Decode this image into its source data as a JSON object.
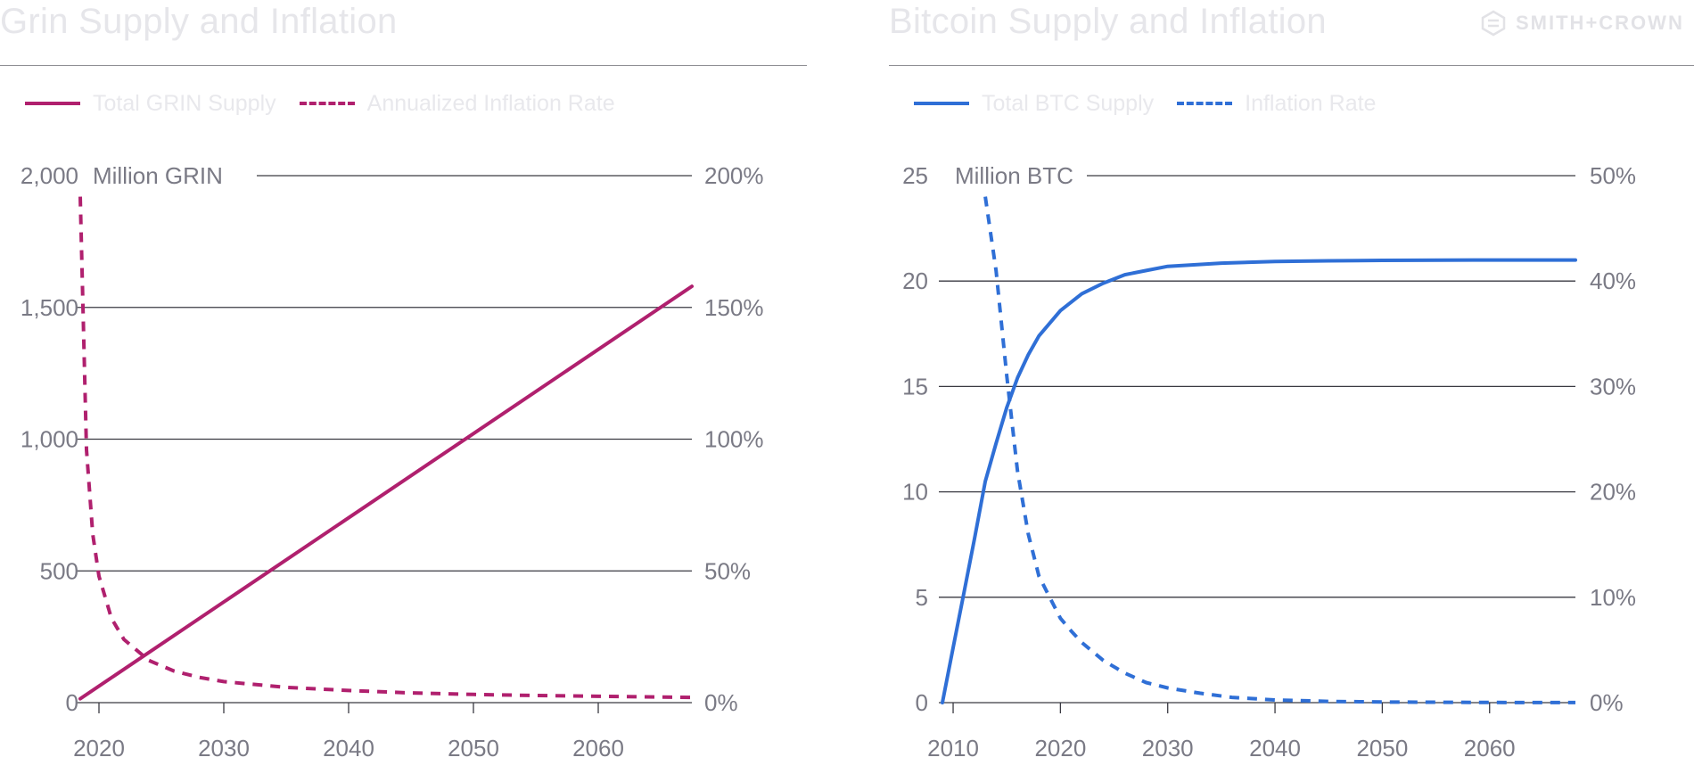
{
  "colors": {
    "grin": "#b0206e",
    "btc": "#2f6fd6",
    "grid": "#3a3a42",
    "text": "#7a7a85",
    "faint": "#e6e6ea"
  },
  "logo": {
    "text": "SMITH+CROWN",
    "icon": "sc-logo-icon"
  },
  "chart_data": [
    {
      "type": "line",
      "title": "Grin Supply and Inflation",
      "legend": [
        "Total GRIN Supply",
        "Annualized Inflation Rate"
      ],
      "left_axis_unit": "Million GRIN",
      "yticks_left": [
        "0",
        "500",
        "1,000",
        "1,500",
        "2,000"
      ],
      "ylim_left": [
        0,
        2000
      ],
      "yticks_right": [
        "0%",
        "50%",
        "100%",
        "150%",
        "200%"
      ],
      "ylim_right": [
        0,
        200
      ],
      "xticks": [
        "2020",
        "2030",
        "2040",
        "2050",
        "2060"
      ],
      "xlim": [
        2018.5,
        2067.5
      ],
      "grid": true,
      "series": [
        {
          "name": "Total GRIN Supply",
          "axis": "left",
          "style": "solid",
          "x": [
            2018.5,
            2067.5
          ],
          "y": [
            15,
            1580
          ]
        },
        {
          "name": "Annualized Inflation Rate",
          "axis": "right",
          "style": "dashed",
          "x": [
            2018.5,
            2019,
            2019.5,
            2020,
            2021,
            2022,
            2024,
            2026,
            2028,
            2030,
            2035,
            2040,
            2045,
            2050,
            2055,
            2060,
            2067.5
          ],
          "y": [
            192,
            96,
            64,
            48,
            32,
            24,
            16,
            12,
            9.6,
            8,
            5.8,
            4.6,
            3.7,
            3.1,
            2.7,
            2.4,
            2.0
          ]
        }
      ]
    },
    {
      "type": "line",
      "title": "Bitcoin Supply and Inflation",
      "legend": [
        "Total BTC Supply",
        "Inflation Rate"
      ],
      "left_axis_unit": "Million BTC",
      "yticks_left": [
        "0",
        "5",
        "10",
        "15",
        "20",
        "25"
      ],
      "ylim_left": [
        0,
        25
      ],
      "yticks_right": [
        "0%",
        "10%",
        "20%",
        "30%",
        "40%",
        "50%"
      ],
      "ylim_right": [
        0,
        50
      ],
      "xticks": [
        "2010",
        "2020",
        "2030",
        "2040",
        "2050",
        "2060"
      ],
      "xlim": [
        2009,
        2068
      ],
      "grid": true,
      "series": [
        {
          "name": "Total BTC Supply",
          "axis": "left",
          "style": "solid",
          "x": [
            2009,
            2010,
            2011,
            2012,
            2013,
            2014,
            2015,
            2016,
            2017,
            2018,
            2020,
            2022,
            2024,
            2026,
            2028,
            2030,
            2035,
            2040,
            2045,
            2050,
            2060,
            2068
          ],
          "y": [
            0,
            2.6,
            5.2,
            7.8,
            10.5,
            12.3,
            14.0,
            15.4,
            16.5,
            17.4,
            18.6,
            19.4,
            19.9,
            20.3,
            20.5,
            20.7,
            20.85,
            20.93,
            20.96,
            20.98,
            21.0,
            21.0
          ]
        },
        {
          "name": "Inflation Rate",
          "axis": "right",
          "style": "dashed",
          "x": [
            2013,
            2014,
            2015,
            2016,
            2017,
            2018,
            2019,
            2020,
            2021,
            2022,
            2024,
            2026,
            2028,
            2030,
            2033,
            2036,
            2040,
            2045,
            2050,
            2060,
            2068
          ],
          "y": [
            48,
            41,
            31,
            22,
            16,
            12,
            10,
            8,
            6.8,
            5.7,
            4.0,
            2.8,
            1.9,
            1.4,
            0.9,
            0.5,
            0.25,
            0.12,
            0.06,
            0.02,
            0.01
          ]
        }
      ]
    }
  ]
}
